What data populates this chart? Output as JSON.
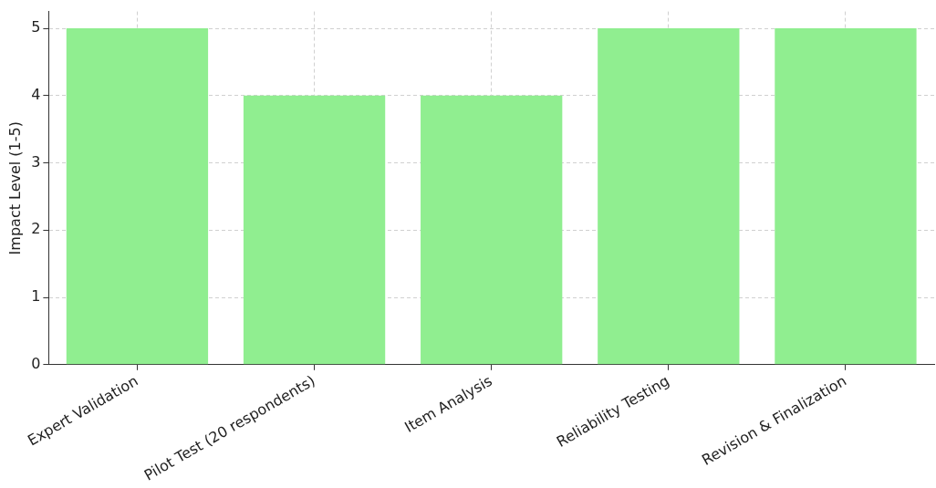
{
  "chart_data": {
    "type": "bar",
    "ylabel": "Impact Level (1-5)",
    "categories": [
      "Expert Validation",
      "Pilot Test (20 respondents)",
      "Item Analysis",
      "Reliability Testing",
      "Revision & Finalization"
    ],
    "values": [
      5,
      4,
      4,
      5,
      5
    ],
    "color": "#90ee90",
    "ylim": [
      0,
      5.25
    ],
    "yticks": [
      0,
      1,
      2,
      3,
      4,
      5
    ],
    "grid": true
  }
}
